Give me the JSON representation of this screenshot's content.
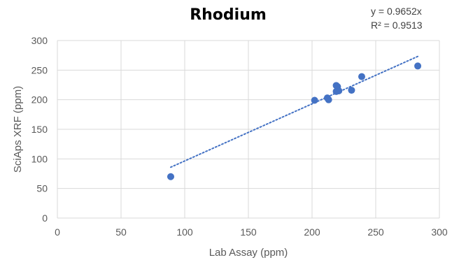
{
  "chart_data": {
    "type": "scatter",
    "title": "Rhodium",
    "xlabel": "Lab Assay (ppm)",
    "ylabel": "SciAps XRF (ppm)",
    "xlim": [
      0,
      300
    ],
    "ylim": [
      0,
      300
    ],
    "x_ticks": [
      "0",
      "50",
      "100",
      "150",
      "200",
      "250",
      "300"
    ],
    "y_ticks": [
      "0",
      "50",
      "100",
      "150",
      "200",
      "250",
      "300"
    ],
    "grid": true,
    "legend": "none",
    "marker_color": "#4472C4",
    "trendline": {
      "type": "linear",
      "slope": 0.9652,
      "x_range": [
        89,
        283
      ],
      "style": "dotted",
      "equation": "y = 0.9652x",
      "r_squared": "R² = 0.9513"
    },
    "points": [
      {
        "x": 89,
        "y": 70
      },
      {
        "x": 202,
        "y": 199
      },
      {
        "x": 212,
        "y": 203
      },
      {
        "x": 213,
        "y": 200
      },
      {
        "x": 219,
        "y": 224
      },
      {
        "x": 220,
        "y": 222
      },
      {
        "x": 219,
        "y": 214
      },
      {
        "x": 221,
        "y": 215
      },
      {
        "x": 231,
        "y": 216
      },
      {
        "x": 239,
        "y": 239
      },
      {
        "x": 283,
        "y": 257
      }
    ]
  }
}
